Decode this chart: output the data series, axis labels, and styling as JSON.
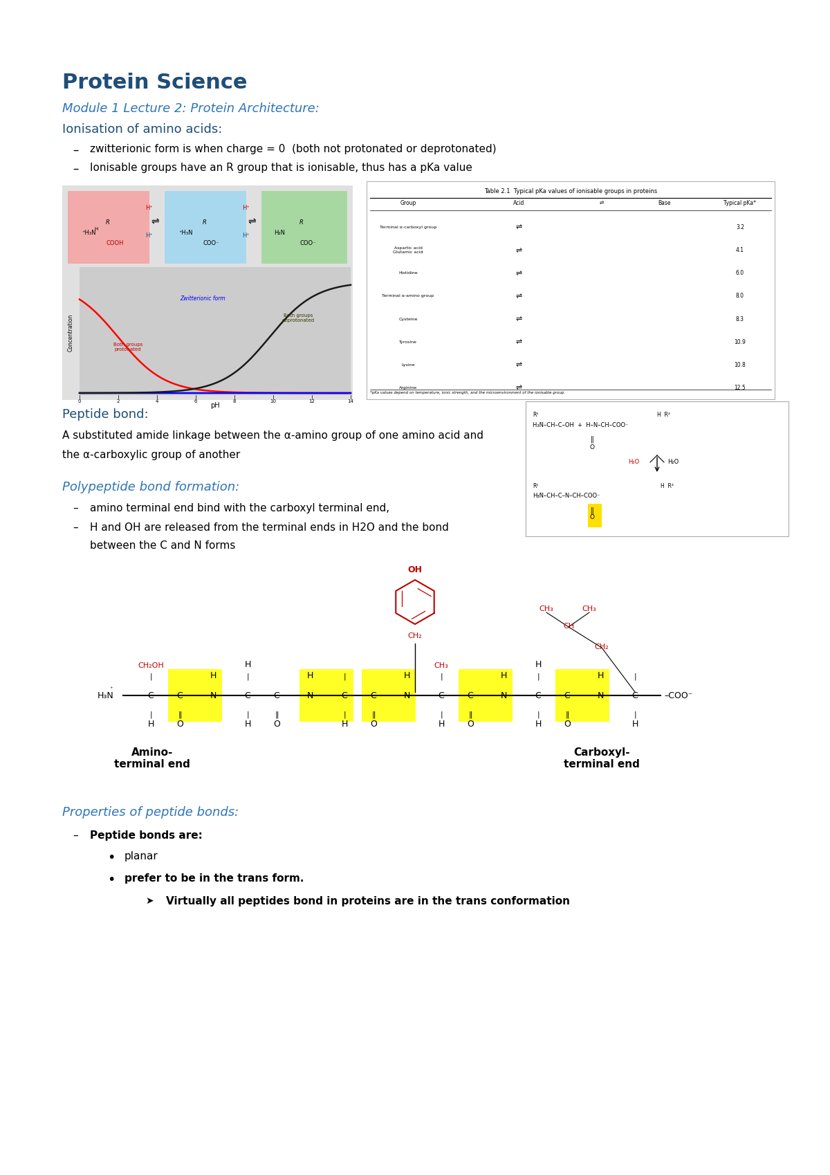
{
  "bg_color": "#ffffff",
  "title": "Protein Science",
  "subtitle": "Module 1 Lecture 2: Protein Architecture:",
  "section1_header": "Ionisation of amino acids:",
  "bullet1": "zwitterionic form is when charge = 0  (both not protonated or deprotonated)",
  "bullet2": "Ionisable groups have an R group that is ionisable, thus has a pKa value",
  "section2_header": "Peptide bond:",
  "peptide_desc1": "A substituted amide linkage between the α-amino group of one amino acid and",
  "peptide_desc2": "the α-carboxylic group of another",
  "section3_header": "Polypeptide bond formation:",
  "poly_bullet1": "amino terminal end bind with the carboxyl terminal end,",
  "poly_bullet2": "H and OH are released from the terminal ends in H2O and the bond",
  "poly_bullet2b": "between the C and N forms",
  "section4_header": "Properties of peptide bonds:",
  "prop_bullet1": "Peptide bonds are:",
  "prop_sub1": "planar",
  "prop_sub2": "prefer to be in the trans form.",
  "prop_subsub1": "Virtually all peptides bond in proteins are in the trans conformation",
  "blue_color": "#1F4E79",
  "cyan_blue": "#2E75B6",
  "red_color": "#C00000",
  "dark_blue": "#1F3864",
  "title_color": "#1F4E79"
}
